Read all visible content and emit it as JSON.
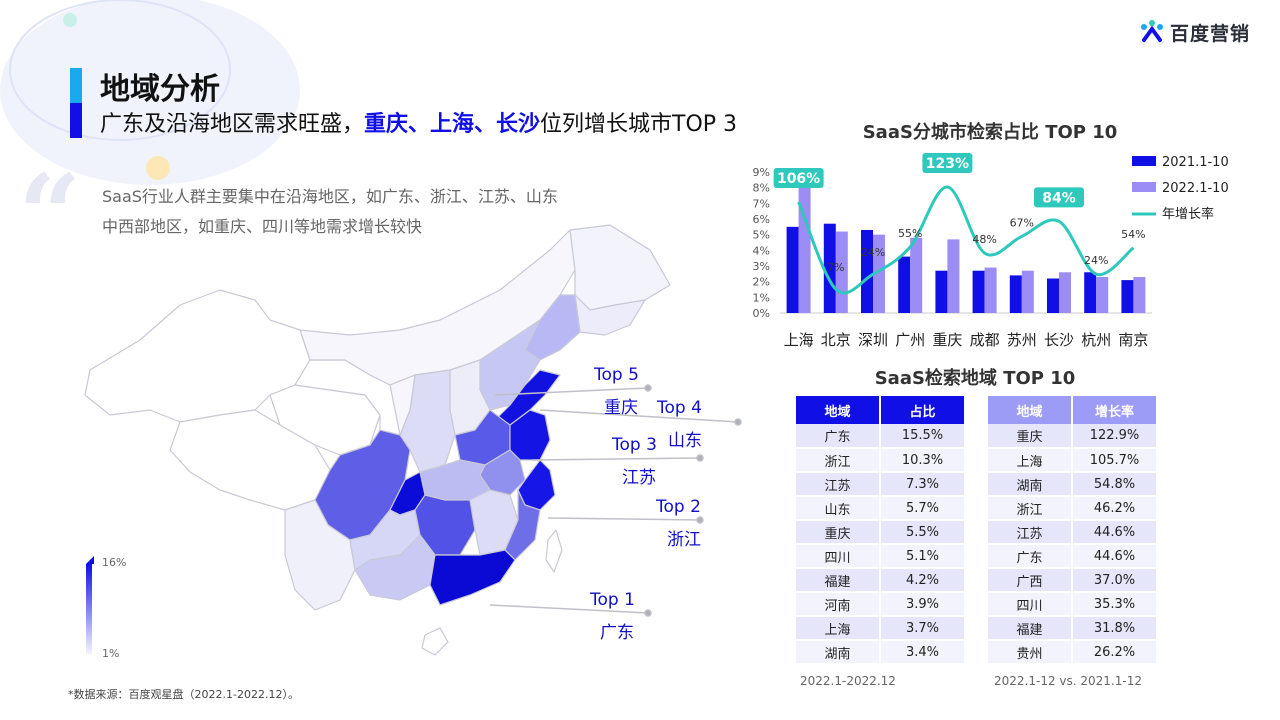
{
  "brand": {
    "name": "百度营销"
  },
  "page": {
    "title": "地域分析",
    "subtitle_parts": [
      {
        "text": "广东及沿海地区需求旺盛，",
        "hl": false
      },
      {
        "text": "重庆、上海、长沙",
        "hl": true
      },
      {
        "text": "位列增长城市TOP 3",
        "hl": false
      }
    ],
    "desc_lines": [
      "SaaS行业人群主要集中在沿海地区，如广东、浙江、江苏、山东",
      "中西部地区，如重庆、四川等地需求增长较快"
    ],
    "footnote": "*数据来源：百度观星盘（2022.1-2022.12）。"
  },
  "map": {
    "legend_max": "16%",
    "legend_min": "1%",
    "callouts": [
      {
        "top": "Top 5",
        "name": "重庆"
      },
      {
        "top": "Top 4",
        "name": "山东"
      },
      {
        "top": "Top 3",
        "name": "江苏"
      },
      {
        "top": "Top 2",
        "name": "浙江"
      },
      {
        "top": "Top 1",
        "name": "广东"
      }
    ],
    "colors": {
      "high": "#1010e6",
      "low": "#f1f1fb"
    }
  },
  "chart_data": {
    "type": "bar",
    "title": "SaaS分城市检索占比 TOP 10",
    "categories": [
      "上海",
      "北京",
      "深圳",
      "广州",
      "重庆",
      "成都",
      "苏州",
      "长沙",
      "杭州",
      "南京"
    ],
    "series": [
      {
        "name": "2021.1-10",
        "type": "bar",
        "color": "#1010e6",
        "values": [
          5.5,
          5.7,
          5.3,
          3.6,
          2.7,
          2.7,
          2.4,
          2.2,
          2.6,
          2.1
        ]
      },
      {
        "name": "2022.1-10",
        "type": "bar",
        "color": "#9c8cf6",
        "values": [
          8.2,
          5.2,
          5.0,
          4.8,
          4.7,
          2.9,
          2.7,
          2.6,
          2.3,
          2.3
        ]
      },
      {
        "name": "年增长率",
        "type": "line",
        "color": "#2ec9bc",
        "values": [
          106,
          7,
          24,
          55,
          123,
          48,
          67,
          84,
          24,
          54
        ],
        "value_labels": [
          "106%",
          "7%",
          "24%",
          "55%",
          "123%",
          "48%",
          "67%",
          "84%",
          "24%",
          "54%"
        ]
      }
    ],
    "yticks": [
      "0%",
      "1%",
      "2%",
      "3%",
      "4%",
      "5%",
      "6%",
      "7%",
      "8%",
      "9%"
    ],
    "ylim": [
      0,
      9
    ],
    "y2lim": [
      -20,
      140
    ],
    "highlight_labels": [
      0,
      4,
      7
    ],
    "legend": "top-right"
  },
  "tables": {
    "title": "SaaS检索地域 TOP 10",
    "left": {
      "headers": [
        "地域",
        "占比"
      ],
      "rows": [
        [
          "广东",
          "15.5%"
        ],
        [
          "浙江",
          "10.3%"
        ],
        [
          "江苏",
          "7.3%"
        ],
        [
          "山东",
          "5.7%"
        ],
        [
          "重庆",
          "5.5%"
        ],
        [
          "四川",
          "5.1%"
        ],
        [
          "福建",
          "4.2%"
        ],
        [
          "河南",
          "3.9%"
        ],
        [
          "上海",
          "3.7%"
        ],
        [
          "湖南",
          "3.4%"
        ]
      ],
      "note": "2022.1-2022.12"
    },
    "right": {
      "headers": [
        "地域",
        "增长率"
      ],
      "rows": [
        [
          "重庆",
          "122.9%"
        ],
        [
          "上海",
          "105.7%"
        ],
        [
          "湖南",
          "54.8%"
        ],
        [
          "浙江",
          "46.2%"
        ],
        [
          "江苏",
          "44.6%"
        ],
        [
          "广东",
          "44.6%"
        ],
        [
          "广西",
          "37.0%"
        ],
        [
          "四川",
          "35.3%"
        ],
        [
          "福建",
          "31.8%"
        ],
        [
          "贵州",
          "26.2%"
        ]
      ],
      "note": "2022.1-12 vs. 2021.1-12"
    }
  }
}
